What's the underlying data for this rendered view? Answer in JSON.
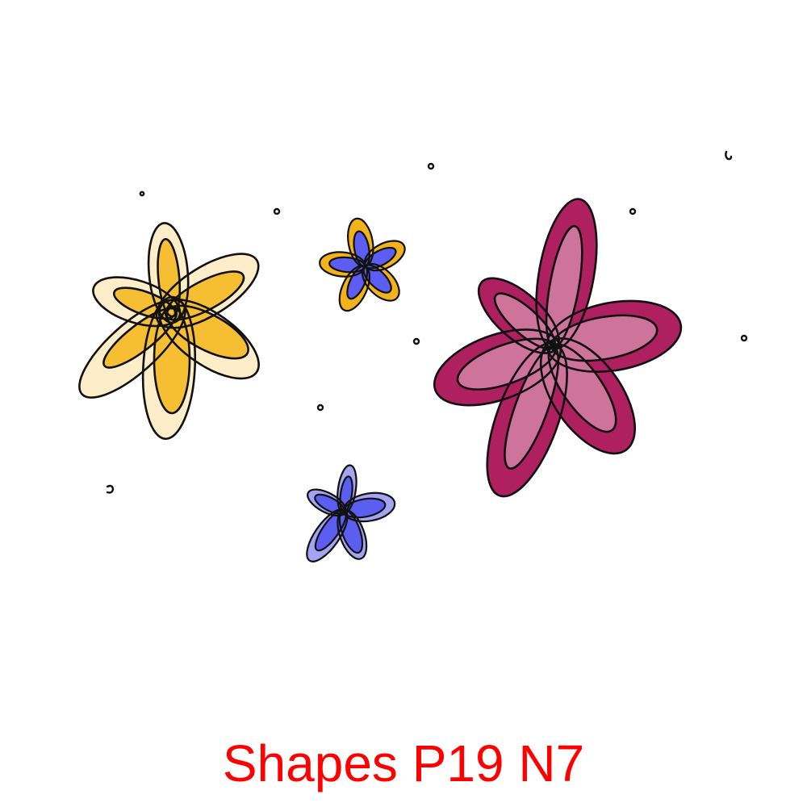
{
  "caption": "Shapes P19 N7",
  "colors": {
    "caption": "#ff0000",
    "yellow_outer": "#fdedc9",
    "yellow_inner": "#f6bf33",
    "magenta_outer": "#ae2060",
    "magenta_inner": "#cd739c",
    "blue_inner": "#5b5ef0",
    "blue_outer": "#a4a4f2",
    "blue_small_outer": "#f2b21b",
    "outline": "#111111"
  },
  "icons": {
    "flower_large_yellow": "flower-icon",
    "flower_small_yellow_blue": "flower-icon",
    "flower_large_magenta": "flower-icon",
    "flower_small_blue": "flower-icon",
    "dots": "dot-icon"
  }
}
